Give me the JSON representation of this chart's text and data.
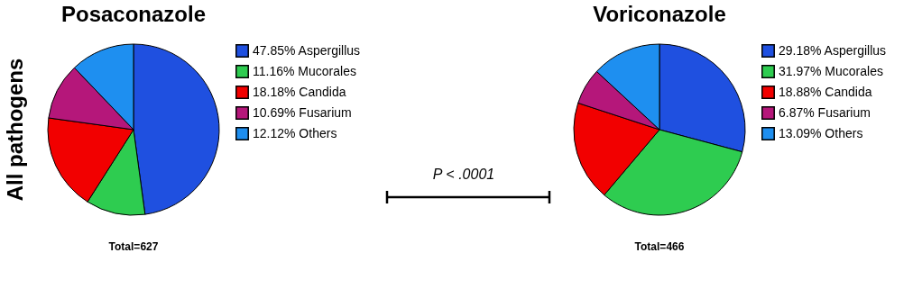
{
  "chart_data": [
    {
      "type": "pie",
      "title": "Posaconazole",
      "ylabel": "All pathogens",
      "categories": [
        "Aspergillus",
        "Mucorales",
        "Candida",
        "Fusarium",
        "Others"
      ],
      "values": [
        47.85,
        11.16,
        18.18,
        10.69,
        12.12
      ],
      "value_labels": [
        "47.85%",
        "11.16%",
        "18.18%",
        "10.69%",
        "12.12%"
      ],
      "colors": [
        "#1f50e0",
        "#2ecc50",
        "#f20000",
        "#b5177a",
        "#1e8ff0"
      ],
      "legend": "right",
      "annotations": [
        "Total=627",
        "P < .0001"
      ]
    },
    {
      "type": "pie",
      "title": "Voriconazole",
      "categories": [
        "Aspergillus",
        "Mucorales",
        "Candida",
        "Fusarium",
        "Others"
      ],
      "values": [
        29.18,
        31.97,
        18.88,
        6.87,
        13.09
      ],
      "value_labels": [
        "29.18%",
        "31.97%",
        "18.88%",
        "6.87%",
        "13.09%"
      ],
      "colors": [
        "#1f50e0",
        "#2ecc50",
        "#f20000",
        "#b5177a",
        "#1e8ff0"
      ],
      "legend": "right",
      "annotations": [
        "Total=466"
      ]
    }
  ]
}
